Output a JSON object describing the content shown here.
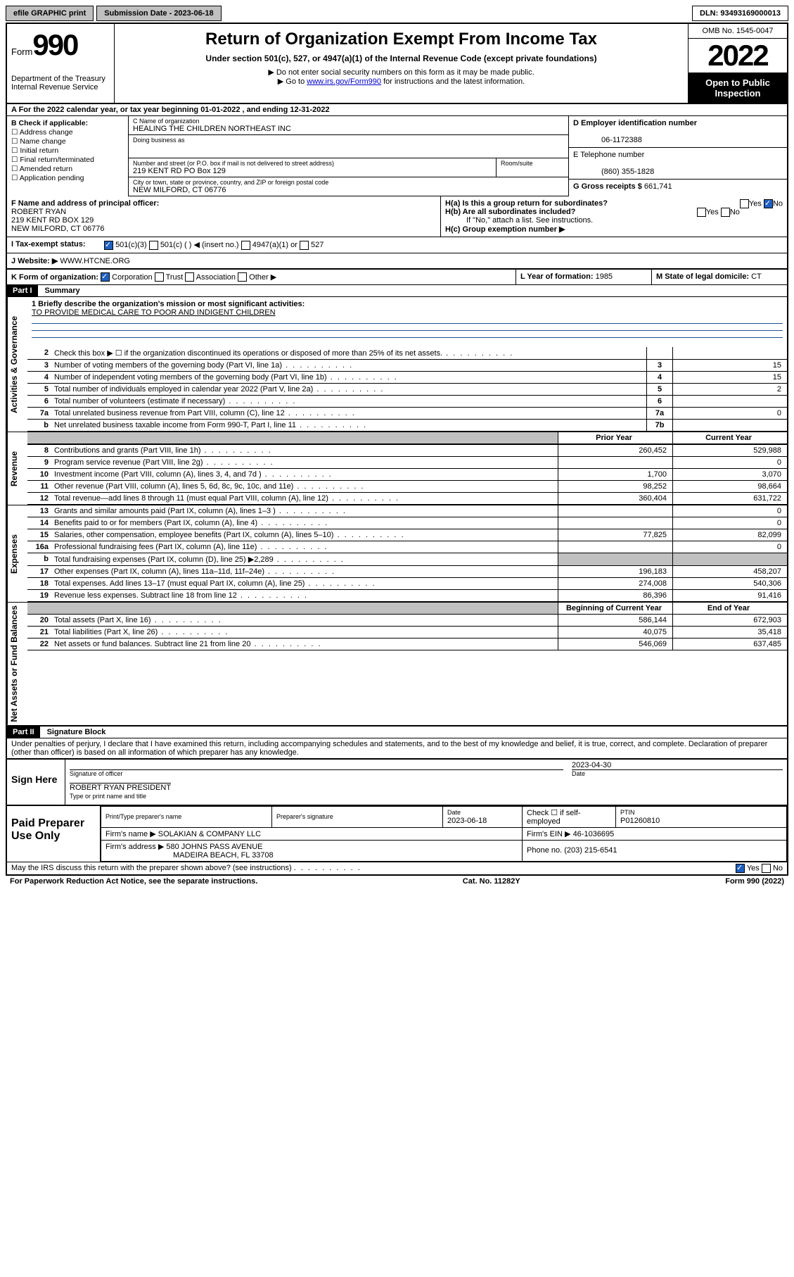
{
  "topbar": {
    "efile": "efile GRAPHIC print",
    "submission": "Submission Date - 2023-06-18",
    "dln": "DLN: 93493169000013"
  },
  "header": {
    "form_label": "Form",
    "form_no": "990",
    "dept": "Department of the Treasury Internal Revenue Service",
    "title": "Return of Organization Exempt From Income Tax",
    "sub": "Under section 501(c), 527, or 4947(a)(1) of the Internal Revenue Code (except private foundations)",
    "note1": "▶ Do not enter social security numbers on this form as it may be made public.",
    "note2_pre": "▶ Go to ",
    "note2_link": "www.irs.gov/Form990",
    "note2_post": " for instructions and the latest information.",
    "omb": "OMB No. 1545-0047",
    "year": "2022",
    "open": "Open to Public Inspection"
  },
  "rowA": "A For the 2022 calendar year, or tax year beginning 01-01-2022   , and ending 12-31-2022",
  "colB": {
    "hdr": "B Check if applicable:",
    "items": [
      "Address change",
      "Name change",
      "Initial return",
      "Final return/terminated",
      "Amended return",
      "Application pending"
    ]
  },
  "c": {
    "name_lbl": "C Name of organization",
    "name": "HEALING THE CHILDREN NORTHEAST INC",
    "dba_lbl": "Doing business as",
    "street_lbl": "Number and street (or P.O. box if mail is not delivered to street address)",
    "room_lbl": "Room/suite",
    "street": "219 KENT RD PO Box 129",
    "city_lbl": "City or town, state or province, country, and ZIP or foreign postal code",
    "city": "NEW MILFORD, CT  06776"
  },
  "d": {
    "lbl": "D Employer identification number",
    "val": "06-1172388"
  },
  "e": {
    "lbl": "E Telephone number",
    "val": "(860) 355-1828"
  },
  "g": {
    "lbl": "G Gross receipts $",
    "val": "661,741"
  },
  "f": {
    "lbl": "F Name and address of principal officer:",
    "name": "ROBERT RYAN",
    "addr1": "219 KENT RD BOX 129",
    "addr2": "NEW MILFORD, CT  06776"
  },
  "h": {
    "a": "H(a)  Is this a group return for subordinates?",
    "a_yes": "Yes",
    "a_no": "No",
    "b": "H(b)  Are all subordinates included?",
    "b_yes": "Yes",
    "b_no": "No",
    "b_note": "If \"No,\" attach a list. See instructions.",
    "c": "H(c)  Group exemption number ▶"
  },
  "i": {
    "lbl": "I    Tax-exempt status:",
    "c1": "501(c)(3)",
    "c2": "501(c) (  ) ◀ (insert no.)",
    "c3": "4947(a)(1) or",
    "c4": "527"
  },
  "j": {
    "lbl": "J   Website: ▶",
    "val": "WWW.HTCNE.ORG"
  },
  "k": {
    "lbl": "K Form of organization:",
    "c1": "Corporation",
    "c2": "Trust",
    "c3": "Association",
    "c4": "Other ▶"
  },
  "l": {
    "lbl": "L Year of formation:",
    "val": "1985"
  },
  "m": {
    "lbl": "M State of legal domicile:",
    "val": "CT"
  },
  "part1": {
    "hdr": "Part I",
    "title": "Summary"
  },
  "mission": {
    "q": "1   Briefly describe the organization's mission or most significant activities:",
    "text": "TO PROVIDE MEDICAL CARE TO POOR AND INDIGENT CHILDREN"
  },
  "sides": {
    "gov": "Activities & Governance",
    "rev": "Revenue",
    "exp": "Expenses",
    "net": "Net Assets or Fund Balances"
  },
  "gov_lines": [
    {
      "n": "2",
      "d": "Check this box ▶ ☐  if the organization discontinued its operations or disposed of more than 25% of its net assets.",
      "box": "",
      "v": ""
    },
    {
      "n": "3",
      "d": "Number of voting members of the governing body (Part VI, line 1a)",
      "box": "3",
      "v": "15"
    },
    {
      "n": "4",
      "d": "Number of independent voting members of the governing body (Part VI, line 1b)",
      "box": "4",
      "v": "15"
    },
    {
      "n": "5",
      "d": "Total number of individuals employed in calendar year 2022 (Part V, line 2a)",
      "box": "5",
      "v": "2"
    },
    {
      "n": "6",
      "d": "Total number of volunteers (estimate if necessary)",
      "box": "6",
      "v": ""
    },
    {
      "n": "7a",
      "d": "Total unrelated business revenue from Part VIII, column (C), line 12",
      "box": "7a",
      "v": "0"
    },
    {
      "n": "b",
      "d": "Net unrelated business taxable income from Form 990-T, Part I, line 11",
      "box": "7b",
      "v": ""
    }
  ],
  "cols": {
    "prior": "Prior Year",
    "current": "Current Year",
    "boy": "Beginning of Current Year",
    "eoy": "End of Year"
  },
  "rev_lines": [
    {
      "n": "8",
      "d": "Contributions and grants (Part VIII, line 1h)",
      "p": "260,452",
      "c": "529,988"
    },
    {
      "n": "9",
      "d": "Program service revenue (Part VIII, line 2g)",
      "p": "",
      "c": "0"
    },
    {
      "n": "10",
      "d": "Investment income (Part VIII, column (A), lines 3, 4, and 7d )",
      "p": "1,700",
      "c": "3,070"
    },
    {
      "n": "11",
      "d": "Other revenue (Part VIII, column (A), lines 5, 6d, 8c, 9c, 10c, and 11e)",
      "p": "98,252",
      "c": "98,664"
    },
    {
      "n": "12",
      "d": "Total revenue—add lines 8 through 11 (must equal Part VIII, column (A), line 12)",
      "p": "360,404",
      "c": "631,722"
    }
  ],
  "exp_lines": [
    {
      "n": "13",
      "d": "Grants and similar amounts paid (Part IX, column (A), lines 1–3 )",
      "p": "",
      "c": "0"
    },
    {
      "n": "14",
      "d": "Benefits paid to or for members (Part IX, column (A), line 4)",
      "p": "",
      "c": "0"
    },
    {
      "n": "15",
      "d": "Salaries, other compensation, employee benefits (Part IX, column (A), lines 5–10)",
      "p": "77,825",
      "c": "82,099"
    },
    {
      "n": "16a",
      "d": "Professional fundraising fees (Part IX, column (A), line 11e)",
      "p": "",
      "c": "0"
    },
    {
      "n": "b",
      "d": "Total fundraising expenses (Part IX, column (D), line 25) ▶2,289",
      "p": "grey",
      "c": "grey"
    },
    {
      "n": "17",
      "d": "Other expenses (Part IX, column (A), lines 11a–11d, 11f–24e)",
      "p": "196,183",
      "c": "458,207"
    },
    {
      "n": "18",
      "d": "Total expenses. Add lines 13–17 (must equal Part IX, column (A), line 25)",
      "p": "274,008",
      "c": "540,306"
    },
    {
      "n": "19",
      "d": "Revenue less expenses. Subtract line 18 from line 12",
      "p": "86,396",
      "c": "91,416"
    }
  ],
  "net_lines": [
    {
      "n": "20",
      "d": "Total assets (Part X, line 16)",
      "p": "586,144",
      "c": "672,903"
    },
    {
      "n": "21",
      "d": "Total liabilities (Part X, line 26)",
      "p": "40,075",
      "c": "35,418"
    },
    {
      "n": "22",
      "d": "Net assets or fund balances. Subtract line 21 from line 20",
      "p": "546,069",
      "c": "637,485"
    }
  ],
  "part2": {
    "hdr": "Part II",
    "title": "Signature Block"
  },
  "penalties": "Under penalties of perjury, I declare that I have examined this return, including accompanying schedules and statements, and to the best of my knowledge and belief, it is true, correct, and complete. Declaration of preparer (other than officer) is based on all information of which preparer has any knowledge.",
  "sign": {
    "here": "Sign Here",
    "sig_lbl": "Signature of officer",
    "date_lbl": "Date",
    "date": "2023-04-30",
    "name": "ROBERT RYAN  PRESIDENT",
    "name_lbl": "Type or print name and title"
  },
  "prep": {
    "hdr": "Paid Preparer Use Only",
    "c1": "Print/Type preparer's name",
    "c2": "Preparer's signature",
    "c3": "Date",
    "c3v": "2023-06-18",
    "c4": "Check ☐ if self-employed",
    "c5": "PTIN",
    "c5v": "P01260810",
    "firm_lbl": "Firm's name    ▶",
    "firm": "SOLAKIAN & COMPANY LLC",
    "ein_lbl": "Firm's EIN ▶",
    "ein": "46-1036695",
    "addr_lbl": "Firm's address ▶",
    "addr1": "580 JOHNS PASS AVENUE",
    "addr2": "MADEIRA BEACH, FL  33708",
    "phone_lbl": "Phone no.",
    "phone": "(203) 215-6541"
  },
  "footer": {
    "q": "May the IRS discuss this return with the preparer shown above? (see instructions)",
    "yes": "Yes",
    "no": "No",
    "pra": "For Paperwork Reduction Act Notice, see the separate instructions.",
    "cat": "Cat. No. 11282Y",
    "form": "Form 990 (2022)"
  }
}
